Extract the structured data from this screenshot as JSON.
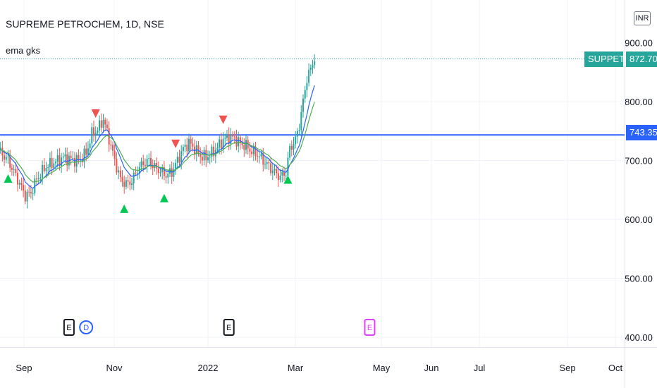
{
  "header": {
    "title": "SUPREME PETROCHEM, 1D, NSE",
    "indicator": "ema gks",
    "currency": "INR"
  },
  "price_tags": {
    "symbol": "SUPPETRO",
    "last": "872.70",
    "hline": "743.35",
    "top_partial": "900.00",
    "symbol_color": "#26a69a",
    "hline_color": "#2962ff"
  },
  "colors": {
    "up": "#26a69a",
    "down": "#ef5350",
    "ema_fast": "#2962ff",
    "ema_slow": "#4caf50",
    "buy_marker": "#00c853",
    "sell_marker": "#ef5350",
    "hline": "#2962ff",
    "grid": "#f0f3fa"
  },
  "chart_data": {
    "type": "candlestick",
    "title": "SUPREME PETROCHEM, 1D, NSE",
    "ylim": [
      388,
      950
    ],
    "y_ticks": [
      "400.00",
      "500.00",
      "600.00",
      "700.00",
      "800.00"
    ],
    "x_ticks": [
      "Sep",
      "Nov",
      "2022",
      "Mar",
      "May",
      "Jun",
      "Jul",
      "Sep",
      "Oct"
    ],
    "last_price": 872.7,
    "horizontal_line": 743.35,
    "close_path": [
      [
        0,
        718
      ],
      [
        5,
        700
      ],
      [
        10,
        668
      ],
      [
        14,
        640
      ],
      [
        17,
        645
      ],
      [
        20,
        668
      ],
      [
        25,
        690
      ],
      [
        30,
        698
      ],
      [
        34,
        705
      ],
      [
        38,
        702
      ],
      [
        42,
        700
      ],
      [
        46,
        712
      ],
      [
        49,
        745
      ],
      [
        52,
        752
      ],
      [
        55,
        770
      ],
      [
        57,
        748
      ],
      [
        59,
        725
      ],
      [
        61,
        700
      ],
      [
        64,
        668
      ],
      [
        67,
        660
      ],
      [
        70,
        665
      ],
      [
        73,
        685
      ],
      [
        76,
        695
      ],
      [
        79,
        700
      ],
      [
        82,
        688
      ],
      [
        85,
        682
      ],
      [
        88,
        675
      ],
      [
        91,
        680
      ],
      [
        94,
        700
      ],
      [
        97,
        720
      ],
      [
        100,
        730
      ],
      [
        103,
        720
      ],
      [
        106,
        708
      ],
      [
        109,
        705
      ],
      [
        112,
        712
      ],
      [
        115,
        722
      ],
      [
        118,
        735
      ],
      [
        121,
        740
      ],
      [
        124,
        738
      ],
      [
        127,
        728
      ],
      [
        130,
        725
      ],
      [
        133,
        715
      ],
      [
        136,
        710
      ],
      [
        139,
        700
      ],
      [
        142,
        690
      ],
      [
        145,
        680
      ],
      [
        148,
        672
      ],
      [
        151,
        680
      ],
      [
        152,
        700
      ],
      [
        153,
        720
      ],
      [
        156,
        735
      ],
      [
        158,
        760
      ],
      [
        160,
        800
      ],
      [
        162,
        840
      ],
      [
        164,
        855
      ],
      [
        166,
        875
      ]
    ],
    "buy_signals": [
      5,
      66,
      87,
      152
    ],
    "sell_signals": [
      51,
      93,
      118
    ],
    "events": [
      {
        "x": 37,
        "label": "E",
        "color": "#131722"
      },
      {
        "x": 46,
        "label": "D",
        "color": "#2962ff"
      },
      {
        "x": 121,
        "label": "E",
        "color": "#131722"
      },
      {
        "x": 195,
        "label": "E",
        "color": "#e040fb"
      }
    ]
  }
}
